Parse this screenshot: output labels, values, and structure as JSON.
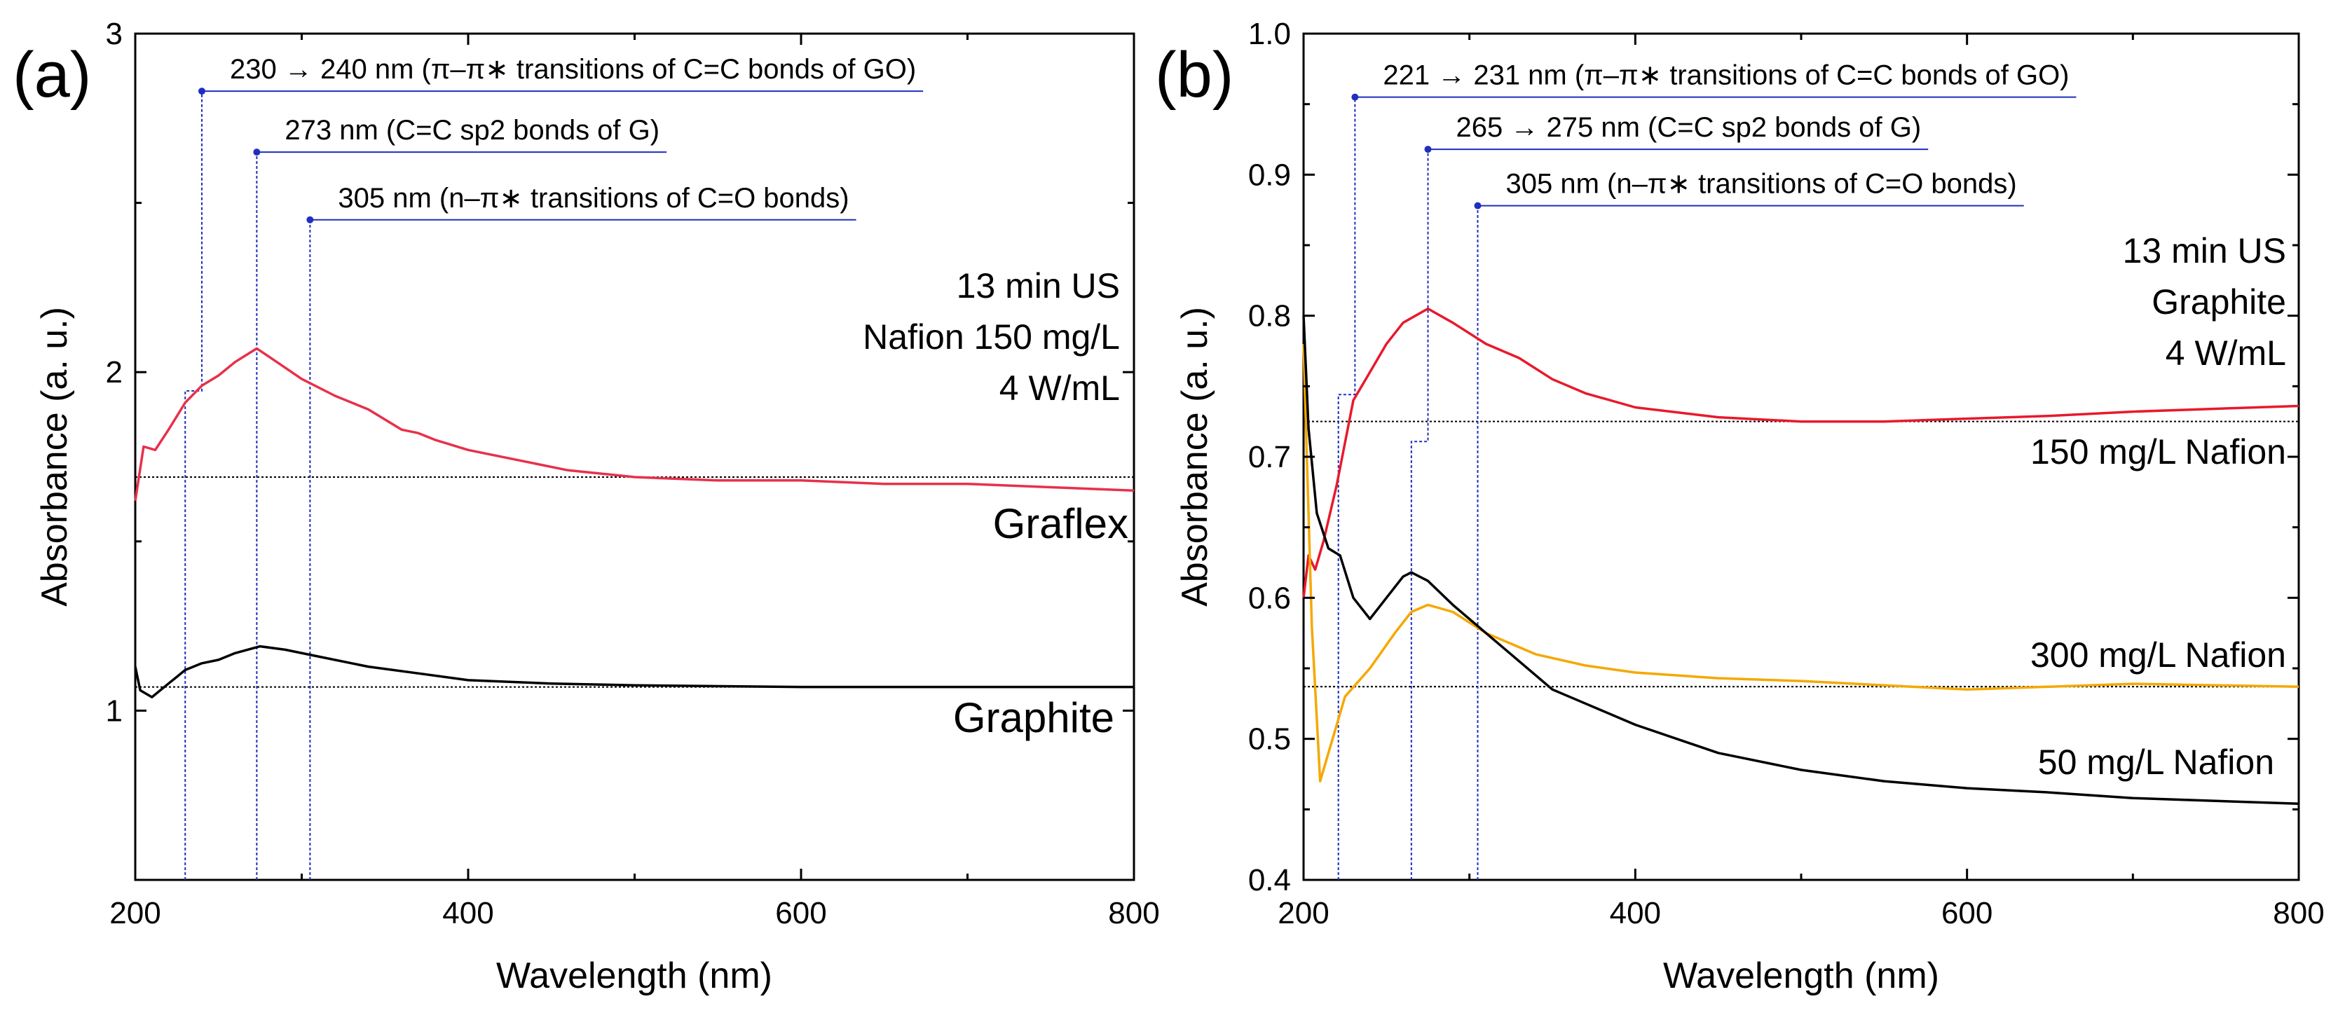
{
  "chart_data": [
    {
      "panel": "(a)",
      "type": "line",
      "xlabel": "Wavelength (nm)",
      "ylabel": "Absorbance (a. u.)",
      "xlim": [
        200,
        800
      ],
      "ylim": [
        0.5,
        3
      ],
      "xticks": [
        "200",
        "400",
        "600",
        "800"
      ],
      "yticks": [
        "1",
        "2",
        "3"
      ],
      "ytick_values": [
        1,
        2,
        3
      ],
      "conditions": [
        "13 min US",
        "Nafion 150 mg/L",
        "4 W/mL"
      ],
      "annotations": [
        {
          "text": "230 → 240 nm (π–π∗ transitions of C=C bonds of GO)",
          "from_nm": 230,
          "to_nm": 240,
          "level": 2.83
        },
        {
          "text": "273 nm (C=C sp2 bonds of G)",
          "from_nm": 273,
          "to_nm": 273,
          "level": 2.65
        },
        {
          "text": "305 nm (n–π∗ transitions of C=O bonds)",
          "from_nm": 305,
          "to_nm": 305,
          "level": 2.45
        }
      ],
      "series": [
        {
          "name": "Graflex",
          "color": "#e8304a",
          "baseline": 1.69,
          "x": [
            200,
            205,
            212,
            220,
            230,
            240,
            250,
            260,
            273,
            285,
            300,
            320,
            340,
            360,
            370,
            380,
            400,
            430,
            460,
            500,
            550,
            600,
            650,
            700,
            750,
            800
          ],
          "y": [
            1.62,
            1.78,
            1.77,
            1.83,
            1.91,
            1.96,
            1.99,
            2.03,
            2.07,
            2.03,
            1.98,
            1.93,
            1.89,
            1.83,
            1.82,
            1.8,
            1.77,
            1.74,
            1.71,
            1.69,
            1.68,
            1.68,
            1.67,
            1.67,
            1.66,
            1.65
          ]
        },
        {
          "name": "Graphite",
          "color": "#000000",
          "baseline": 1.07,
          "x": [
            200,
            203,
            210,
            220,
            230,
            240,
            250,
            260,
            275,
            290,
            310,
            340,
            370,
            400,
            450,
            500,
            600,
            700,
            800
          ],
          "y": [
            1.13,
            1.06,
            1.04,
            1.08,
            1.12,
            1.14,
            1.15,
            1.17,
            1.19,
            1.18,
            1.16,
            1.13,
            1.11,
            1.09,
            1.08,
            1.075,
            1.07,
            1.07,
            1.07
          ]
        }
      ]
    },
    {
      "panel": "(b)",
      "type": "line",
      "xlabel": "Wavelength (nm)",
      "ylabel": "Absorbance (a. u.)",
      "xlim": [
        200,
        800
      ],
      "ylim": [
        0.4,
        1.0
      ],
      "xticks": [
        "200",
        "400",
        "600",
        "800"
      ],
      "yticks": [
        "0.4",
        "0.5",
        "0.6",
        "0.7",
        "0.8",
        "0.9",
        "1.0"
      ],
      "ytick_values": [
        0.4,
        0.5,
        0.6,
        0.7,
        0.8,
        0.9,
        1.0
      ],
      "conditions": [
        "13 min US",
        "Graphite",
        "4 W/mL"
      ],
      "annotations": [
        {
          "text": "221 → 231 nm (π–π∗ transitions of C=C bonds of GO)",
          "from_nm": 221,
          "to_nm": 231,
          "level": 0.955
        },
        {
          "text": "265 → 275 nm (C=C sp2 bonds of G)",
          "from_nm": 265,
          "to_nm": 275,
          "level": 0.918
        },
        {
          "text": "305 nm (n–π∗ transitions of C=O bonds)",
          "from_nm": 305,
          "to_nm": 305,
          "level": 0.878
        }
      ],
      "series": [
        {
          "name": "150 mg/L Nafion",
          "color": "#e8192c",
          "baseline": 0.725,
          "x": [
            200,
            203,
            207,
            212,
            220,
            230,
            240,
            250,
            260,
            275,
            290,
            310,
            330,
            350,
            370,
            400,
            450,
            500,
            550,
            600,
            650,
            700,
            750,
            800
          ],
          "y": [
            0.6,
            0.63,
            0.62,
            0.64,
            0.68,
            0.74,
            0.76,
            0.78,
            0.795,
            0.805,
            0.795,
            0.78,
            0.77,
            0.755,
            0.745,
            0.735,
            0.728,
            0.725,
            0.725,
            0.727,
            0.729,
            0.732,
            0.734,
            0.736
          ]
        },
        {
          "name": "300 mg/L Nafion",
          "color": "#f5a800",
          "baseline": 0.537,
          "x": [
            200,
            205,
            210,
            215,
            225,
            240,
            255,
            265,
            275,
            290,
            310,
            340,
            370,
            400,
            450,
            500,
            550,
            600,
            650,
            700,
            750,
            800
          ],
          "y": [
            0.78,
            0.58,
            0.47,
            0.49,
            0.53,
            0.55,
            0.575,
            0.59,
            0.595,
            0.59,
            0.575,
            0.56,
            0.552,
            0.547,
            0.543,
            0.541,
            0.538,
            0.535,
            0.537,
            0.539,
            0.538,
            0.537
          ]
        },
        {
          "name": "50 mg/L Nafion",
          "color": "#000000",
          "baseline": 0.537,
          "x": [
            200,
            203,
            208,
            215,
            222,
            230,
            240,
            250,
            260,
            265,
            275,
            290,
            310,
            330,
            350,
            370,
            400,
            450,
            500,
            550,
            600,
            650,
            700,
            750,
            800
          ],
          "y": [
            0.8,
            0.72,
            0.66,
            0.635,
            0.63,
            0.6,
            0.585,
            0.6,
            0.615,
            0.618,
            0.612,
            0.595,
            0.575,
            0.555,
            0.535,
            0.525,
            0.51,
            0.49,
            0.478,
            0.47,
            0.465,
            0.462,
            0.458,
            0.456,
            0.454
          ]
        }
      ]
    }
  ]
}
